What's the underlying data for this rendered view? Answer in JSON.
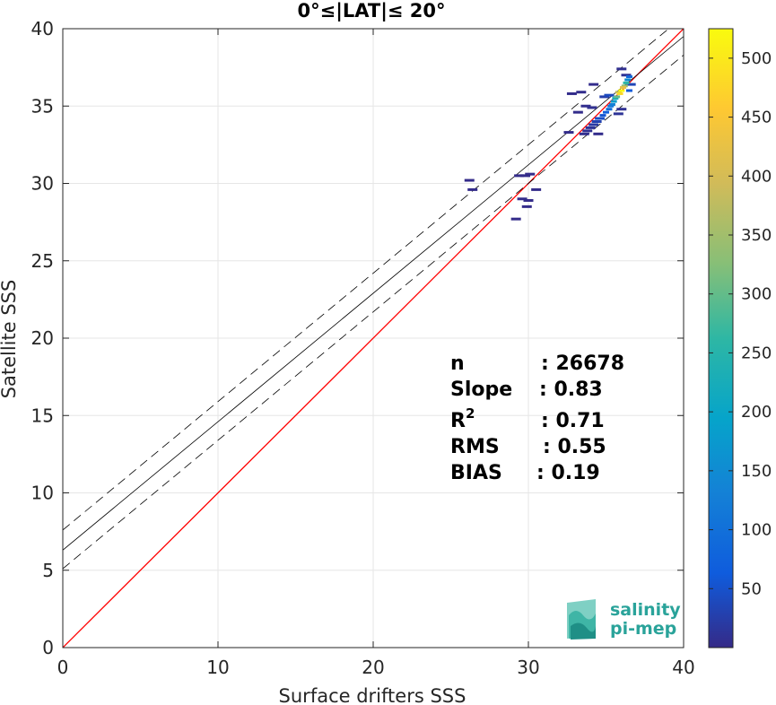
{
  "chart_data": {
    "type": "scatter",
    "title": "0°≤|LAT|≤ 20°",
    "xlabel": "Surface drifters SSS",
    "ylabel": "Satellite SSS",
    "xlim": [
      0,
      40
    ],
    "ylim": [
      0,
      40
    ],
    "xticks": [
      "0",
      "10",
      "20",
      "30",
      "40"
    ],
    "yticks": [
      "0",
      "5",
      "10",
      "15",
      "20",
      "25",
      "30",
      "35",
      "40"
    ],
    "grid": true,
    "lines": [
      {
        "name": "1:1",
        "color": "#ff0000",
        "style": "solid",
        "intercept": 0,
        "slope": 1
      },
      {
        "name": "fit",
        "color": "#000000",
        "style": "solid",
        "intercept": 6.3,
        "slope": 0.83
      },
      {
        "name": "fit+",
        "color": "#000000",
        "style": "dashed",
        "intercept": 7.6,
        "slope": 0.83
      },
      {
        "name": "fit-",
        "color": "#000000",
        "style": "dashed",
        "intercept": 5.1,
        "slope": 0.83
      }
    ],
    "density_points": [
      {
        "x": 36.0,
        "y": 36.0,
        "v": 520
      },
      {
        "x": 35.9,
        "y": 35.8,
        "v": 480
      },
      {
        "x": 36.1,
        "y": 36.2,
        "v": 420
      },
      {
        "x": 35.8,
        "y": 35.9,
        "v": 380
      },
      {
        "x": 36.2,
        "y": 36.3,
        "v": 340
      },
      {
        "x": 35.7,
        "y": 35.6,
        "v": 300
      },
      {
        "x": 36.3,
        "y": 36.5,
        "v": 260
      },
      {
        "x": 35.6,
        "y": 35.5,
        "v": 220
      },
      {
        "x": 35.5,
        "y": 35.3,
        "v": 180
      },
      {
        "x": 36.4,
        "y": 36.7,
        "v": 150
      },
      {
        "x": 35.4,
        "y": 35.1,
        "v": 130
      },
      {
        "x": 35.3,
        "y": 35.0,
        "v": 110
      },
      {
        "x": 35.2,
        "y": 34.8,
        "v": 95
      },
      {
        "x": 36.5,
        "y": 36.9,
        "v": 85
      },
      {
        "x": 35.0,
        "y": 34.6,
        "v": 70
      },
      {
        "x": 34.8,
        "y": 34.4,
        "v": 55
      },
      {
        "x": 34.6,
        "y": 34.2,
        "v": 45
      },
      {
        "x": 34.4,
        "y": 34.0,
        "v": 30
      },
      {
        "x": 34.2,
        "y": 33.8,
        "v": 20
      },
      {
        "x": 34.0,
        "y": 33.6,
        "v": 12
      },
      {
        "x": 33.8,
        "y": 33.4,
        "v": 8
      },
      {
        "x": 33.6,
        "y": 33.2,
        "v": 5
      },
      {
        "x": 33.2,
        "y": 34.6,
        "v": 4
      },
      {
        "x": 32.8,
        "y": 35.8,
        "v": 3
      },
      {
        "x": 33.4,
        "y": 35.9,
        "v": 4
      },
      {
        "x": 34.2,
        "y": 36.4,
        "v": 3
      },
      {
        "x": 36.0,
        "y": 37.4,
        "v": 6
      },
      {
        "x": 36.3,
        "y": 37.0,
        "v": 10
      },
      {
        "x": 35.8,
        "y": 34.5,
        "v": 12
      },
      {
        "x": 36.0,
        "y": 34.8,
        "v": 9
      },
      {
        "x": 33.7,
        "y": 35.0,
        "v": 5
      },
      {
        "x": 34.1,
        "y": 34.9,
        "v": 7
      },
      {
        "x": 34.9,
        "y": 35.6,
        "v": 25
      },
      {
        "x": 35.2,
        "y": 35.7,
        "v": 40
      },
      {
        "x": 36.5,
        "y": 36.0,
        "v": 60
      },
      {
        "x": 36.6,
        "y": 36.4,
        "v": 35
      },
      {
        "x": 34.5,
        "y": 33.2,
        "v": 3
      },
      {
        "x": 32.6,
        "y": 33.3,
        "v": 3
      },
      {
        "x": 26.2,
        "y": 30.2,
        "v": 2
      },
      {
        "x": 26.4,
        "y": 29.6,
        "v": 2
      },
      {
        "x": 29.4,
        "y": 30.5,
        "v": 2
      },
      {
        "x": 29.8,
        "y": 30.5,
        "v": 2
      },
      {
        "x": 30.1,
        "y": 30.6,
        "v": 2
      },
      {
        "x": 29.6,
        "y": 29.0,
        "v": 2
      },
      {
        "x": 30.0,
        "y": 28.9,
        "v": 2
      },
      {
        "x": 29.2,
        "y": 27.7,
        "v": 2
      },
      {
        "x": 29.9,
        "y": 28.5,
        "v": 2
      },
      {
        "x": 30.5,
        "y": 29.6,
        "v": 2
      }
    ],
    "colorbar": {
      "min": 0,
      "max": 525,
      "ticks": [
        "50",
        "100",
        "150",
        "200",
        "250",
        "300",
        "350",
        "400",
        "450",
        "500"
      ],
      "colormap": "parula"
    },
    "stats": [
      {
        "label": "n",
        "value": ": 26678"
      },
      {
        "label": "Slope",
        "value": ": 0.83"
      },
      {
        "label": "R2",
        "value": ": 0.71"
      },
      {
        "label": "RMS",
        "value": ": 0.55"
      },
      {
        "label": "BIAS",
        "value": ": 0.19"
      }
    ]
  },
  "logo": {
    "line1": "salinity",
    "line2": "pi-mep"
  }
}
